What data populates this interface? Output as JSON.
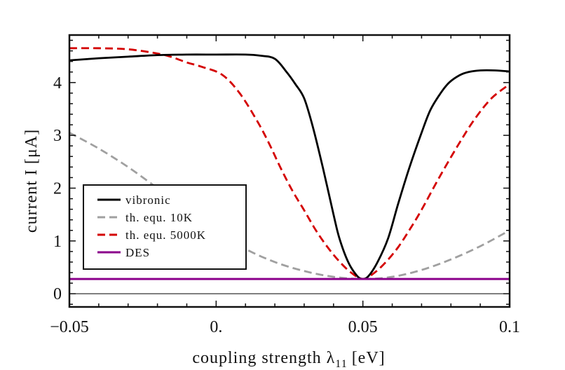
{
  "chart_data": {
    "type": "line",
    "title": "",
    "xlabel": "coupling strength λ",
    "xlabel_sub": "11",
    "xlabel_unit": "[eV]",
    "ylabel": "current I [μA]",
    "xlim": [
      -0.05,
      0.1
    ],
    "ylim": [
      -0.25,
      4.9
    ],
    "x_ticks": [
      -0.05,
      0,
      0.05,
      0.1
    ],
    "x_tick_labels": [
      "−0.05",
      "0.",
      "0.05",
      "0.1"
    ],
    "y_ticks": [
      0,
      1,
      2,
      3,
      4
    ],
    "y_tick_labels": [
      "0",
      "1",
      "2",
      "3",
      "4"
    ],
    "grid": false,
    "legend_position": "lower-left",
    "zero_line": true,
    "series": [
      {
        "name": "vibronic",
        "color": "#000000",
        "dash": "solid",
        "x": [
          -0.05,
          -0.04,
          -0.03,
          -0.02,
          -0.01,
          0,
          0.01,
          0.015,
          0.02,
          0.024,
          0.027,
          0.03,
          0.033,
          0.0364,
          0.04,
          0.042,
          0.045,
          0.048,
          0.05,
          0.052,
          0.055,
          0.0586,
          0.062,
          0.0658,
          0.07,
          0.073,
          0.0765,
          0.0794,
          0.083,
          0.086,
          0.09,
          0.095,
          0.1
        ],
        "y": [
          4.42,
          4.46,
          4.49,
          4.52,
          4.53,
          4.53,
          4.53,
          4.51,
          4.45,
          4.2,
          3.97,
          3.7,
          3.15,
          2.38,
          1.5,
          1.05,
          0.6,
          0.34,
          0.28,
          0.34,
          0.6,
          1.05,
          1.7,
          2.38,
          3.05,
          3.48,
          3.8,
          4.0,
          4.14,
          4.2,
          4.23,
          4.23,
          4.21
        ]
      },
      {
        "name": "th. equ. 10K",
        "color": "#a0a0a0",
        "dash": "dashed",
        "x": [
          -0.05,
          -0.04,
          -0.03,
          -0.02,
          -0.01,
          0,
          0.01,
          0.02,
          0.03,
          0.04,
          0.05,
          0.06,
          0.07,
          0.08,
          0.09,
          0.1
        ],
        "y": [
          3.05,
          2.75,
          2.4,
          2.0,
          1.6,
          1.2,
          0.85,
          0.6,
          0.43,
          0.32,
          0.28,
          0.32,
          0.45,
          0.65,
          0.9,
          1.2
        ]
      },
      {
        "name": "th. equ. 5000K",
        "color": "#d40000",
        "dash": "dashed",
        "x": [
          -0.05,
          -0.04,
          -0.03,
          -0.02,
          -0.015,
          -0.01,
          -0.005,
          0.002,
          0.008,
          0.014,
          0.018,
          0.022,
          0.026,
          0.03,
          0.034,
          0.038,
          0.042,
          0.046,
          0.05,
          0.054,
          0.058,
          0.062,
          0.066,
          0.0699,
          0.076,
          0.0825,
          0.088,
          0.0938,
          0.1
        ],
        "y": [
          4.65,
          4.65,
          4.63,
          4.55,
          4.48,
          4.38,
          4.3,
          4.15,
          3.8,
          3.27,
          2.85,
          2.38,
          1.95,
          1.58,
          1.2,
          0.88,
          0.61,
          0.4,
          0.28,
          0.4,
          0.61,
          0.88,
          1.22,
          1.58,
          2.2,
          2.82,
          3.3,
          3.7,
          3.97
        ]
      },
      {
        "name": "DES",
        "color": "#8b008b",
        "dash": "solid",
        "x": [
          -0.05,
          0.1
        ],
        "y": [
          0.28,
          0.28
        ]
      }
    ]
  }
}
